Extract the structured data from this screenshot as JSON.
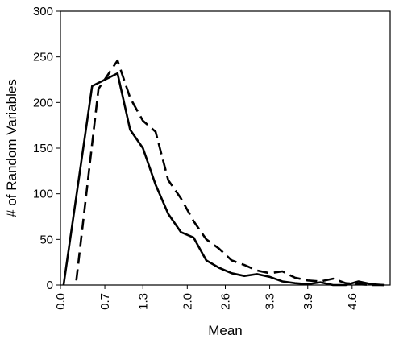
{
  "chart_data": {
    "type": "line",
    "title": "",
    "xlabel": "Mean",
    "ylabel": "# of Random Variables",
    "x_ticks": [
      "0.0",
      "0.7",
      "1.3",
      "2.0",
      "2.6",
      "3.3",
      "3.9",
      "4.6"
    ],
    "y_ticks": [
      "0",
      "50",
      "100",
      "150",
      "200",
      "250",
      "300"
    ],
    "xlim": [
      0.0,
      5.2
    ],
    "ylim": [
      0,
      300
    ],
    "grid": false,
    "legend": "none",
    "series": [
      {
        "style": "solid",
        "color": "#000000",
        "x": [
          0.05,
          0.5,
          0.9,
          1.1,
          1.3,
          1.5,
          1.7,
          1.9,
          2.1,
          2.3,
          2.5,
          2.7,
          2.9,
          3.1,
          3.3,
          3.5,
          3.7,
          3.9,
          4.1,
          4.3,
          4.5,
          4.7,
          4.9,
          5.1
        ],
        "y": [
          0,
          218,
          232,
          170,
          150,
          110,
          78,
          58,
          52,
          27,
          19,
          13,
          10,
          12,
          9,
          4,
          2,
          1,
          3,
          0,
          0,
          4,
          1,
          0
        ]
      },
      {
        "style": "dashed",
        "color": "#000000",
        "x": [
          0.25,
          0.6,
          0.9,
          1.1,
          1.3,
          1.5,
          1.7,
          1.9,
          2.1,
          2.3,
          2.5,
          2.7,
          2.9,
          3.1,
          3.3,
          3.5,
          3.7,
          3.9,
          4.1,
          4.3,
          4.5,
          4.7,
          4.9,
          5.1
        ],
        "y": [
          5,
          215,
          246,
          205,
          180,
          168,
          115,
          95,
          70,
          50,
          40,
          27,
          22,
          16,
          13,
          15,
          8,
          5,
          4,
          7,
          2,
          1,
          0,
          0
        ]
      }
    ]
  }
}
